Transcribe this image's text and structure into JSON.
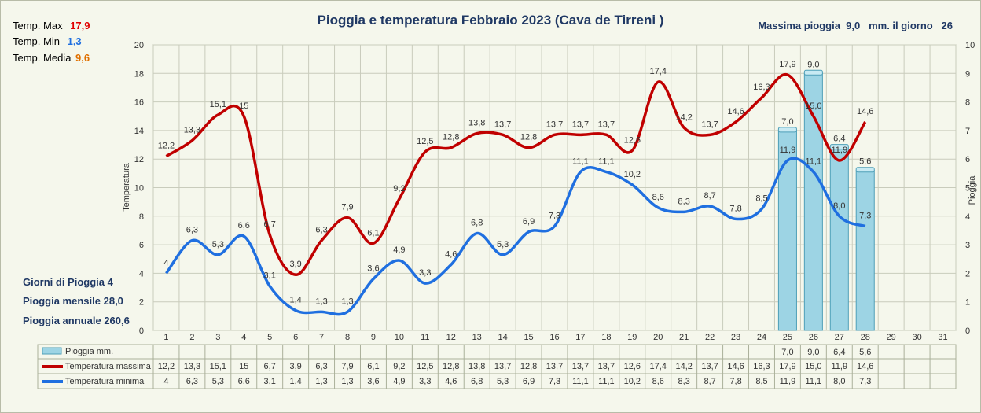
{
  "stats": {
    "tmax_label": "Temp. Max",
    "tmax_value": "17,9",
    "tmin_label": "Temp. Min",
    "tmin_value": "1,3",
    "tavg_label": "Temp. Media",
    "tavg_value": "9,6",
    "max_rain_text": "Massima pioggia  9,0   mm. il giorno   26",
    "rain_days_label": "Giorni di Pioggia",
    "rain_days_value": "4",
    "monthly_label": "Pioggia mensile",
    "monthly_value": "28,0",
    "annual_label": "Pioggia annuale",
    "annual_value": "260,6"
  },
  "colors": {
    "tmax": "#c00000",
    "tmin": "#1f6fe0",
    "rain": "#9dd4e4",
    "rain_edge": "#4e9fb8",
    "title": "#1f3864",
    "tmax_text": "#e00000",
    "tmin_text": "#1f6fe0",
    "tavg_text": "#e07000"
  },
  "chart_data": {
    "type": "line",
    "title": "Pioggia e temperatura Febbraio 2023 (Cava de Tirreni )",
    "ylabel": "Temperatura",
    "y2label": "Pioggia",
    "ylim": [
      0,
      20
    ],
    "y2lim": [
      0,
      10
    ],
    "yticks": [
      "0",
      "2",
      "4",
      "6",
      "8",
      "10",
      "12",
      "14",
      "16",
      "18",
      "20"
    ],
    "y2ticks": [
      "0",
      "1",
      "2",
      "3",
      "4",
      "5",
      "6",
      "7",
      "8",
      "9",
      "10"
    ],
    "categories": [
      "1",
      "2",
      "3",
      "4",
      "5",
      "6",
      "7",
      "8",
      "9",
      "10",
      "11",
      "12",
      "13",
      "14",
      "15",
      "16",
      "17",
      "18",
      "19",
      "20",
      "21",
      "22",
      "23",
      "24",
      "25",
      "26",
      "27",
      "28",
      "29",
      "30",
      "31"
    ],
    "rain": {
      "name": "Pioggia mm.",
      "values": [
        null,
        null,
        null,
        null,
        null,
        null,
        null,
        null,
        null,
        null,
        null,
        null,
        null,
        null,
        null,
        null,
        null,
        null,
        null,
        null,
        null,
        null,
        null,
        null,
        7.0,
        9.0,
        6.4,
        5.6,
        null,
        null,
        null
      ],
      "labels": [
        "",
        "",
        "",
        "",
        "",
        "",
        "",
        "",
        "",
        "",
        "",
        "",
        "",
        "",
        "",
        "",
        "",
        "",
        "",
        "",
        "",
        "",
        "",
        "",
        "7,0",
        "9,0",
        "6,4",
        "5,6",
        "",
        "",
        ""
      ]
    },
    "tmax": {
      "name": "Temperatura massima",
      "values": [
        12.2,
        13.3,
        15.1,
        15,
        6.7,
        3.9,
        6.3,
        7.9,
        6.1,
        9.2,
        12.5,
        12.8,
        13.8,
        13.7,
        12.8,
        13.7,
        13.7,
        13.7,
        12.6,
        17.4,
        14.2,
        13.7,
        14.6,
        16.3,
        17.9,
        15.0,
        11.9,
        14.6,
        null,
        null,
        null
      ],
      "labels": [
        "12,2",
        "13,3",
        "15,1",
        "15",
        "6,7",
        "3,9",
        "6,3",
        "7,9",
        "6,1",
        "9,2",
        "12,5",
        "12,8",
        "13,8",
        "13,7",
        "12,8",
        "13,7",
        "13,7",
        "13,7",
        "12,6",
        "17,4",
        "14,2",
        "13,7",
        "14,6",
        "16,3",
        "17,9",
        "15,0",
        "11,9",
        "14,6",
        "",
        "",
        ""
      ]
    },
    "tmin": {
      "name": "Temperatura minima",
      "values": [
        4,
        6.3,
        5.3,
        6.6,
        3.1,
        1.4,
        1.3,
        1.3,
        3.6,
        4.9,
        3.3,
        4.6,
        6.8,
        5.3,
        6.9,
        7.3,
        11.1,
        11.1,
        10.2,
        8.6,
        8.3,
        8.7,
        7.8,
        8.5,
        11.9,
        11.1,
        8.0,
        7.3,
        null,
        null,
        null
      ],
      "labels": [
        "4",
        "6,3",
        "5,3",
        "6,6",
        "3,1",
        "1,4",
        "1,3",
        "1,3",
        "3,6",
        "4,9",
        "3,3",
        "4,6",
        "6,8",
        "5,3",
        "6,9",
        "7,3",
        "11,1",
        "11,1",
        "10,2",
        "8,6",
        "8,3",
        "8,7",
        "7,8",
        "8,5",
        "11,9",
        "11,1",
        "8,0",
        "7,3",
        "",
        "",
        ""
      ]
    },
    "grid": true,
    "legend": "table-bottom"
  }
}
